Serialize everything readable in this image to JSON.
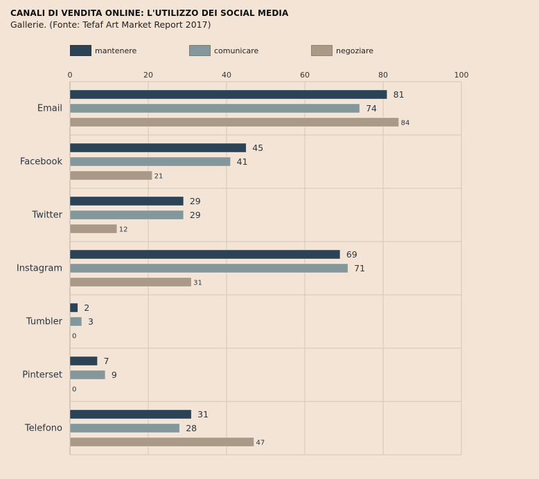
{
  "title": "CANALI DI VENDITA ONLINE: L'UTILIZZO DEI SOCIAL MEDIA",
  "subtitle": "Gallerie. (Fonte: Tefaf Art Market Report 2017)",
  "legend": [
    {
      "label": "mantenere",
      "color": "#2c4356"
    },
    {
      "label": "comunicare",
      "color": "#84979b"
    },
    {
      "label": "negoziare",
      "color": "#ab9988"
    }
  ],
  "chart_data": {
    "type": "bar",
    "orientation": "horizontal",
    "title": "CANALI DI VENDITA ONLINE: L'UTILIZZO DEI SOCIAL MEDIA",
    "subtitle": "Gallerie. (Fonte: Tefaf Art Market Report 2017)",
    "categories": [
      "Email",
      "Facebook",
      "Twitter",
      "Instagram",
      "Tumbler",
      "Pinterset",
      "Telefono"
    ],
    "series": [
      {
        "name": "mantenere",
        "values": [
          81,
          45,
          29,
          69,
          2,
          7,
          31
        ],
        "color": "#2c4356"
      },
      {
        "name": "comunicare",
        "values": [
          74,
          41,
          29,
          71,
          3,
          9,
          28
        ],
        "color": "#84979b"
      },
      {
        "name": "negoziare",
        "values": [
          84,
          21,
          12,
          31,
          0,
          0,
          47
        ],
        "color": "#ab9988"
      }
    ],
    "xlim": [
      0,
      100
    ],
    "xticks": [
      0,
      20,
      40,
      60,
      80,
      100
    ],
    "grid": true,
    "legend_position": "top"
  }
}
